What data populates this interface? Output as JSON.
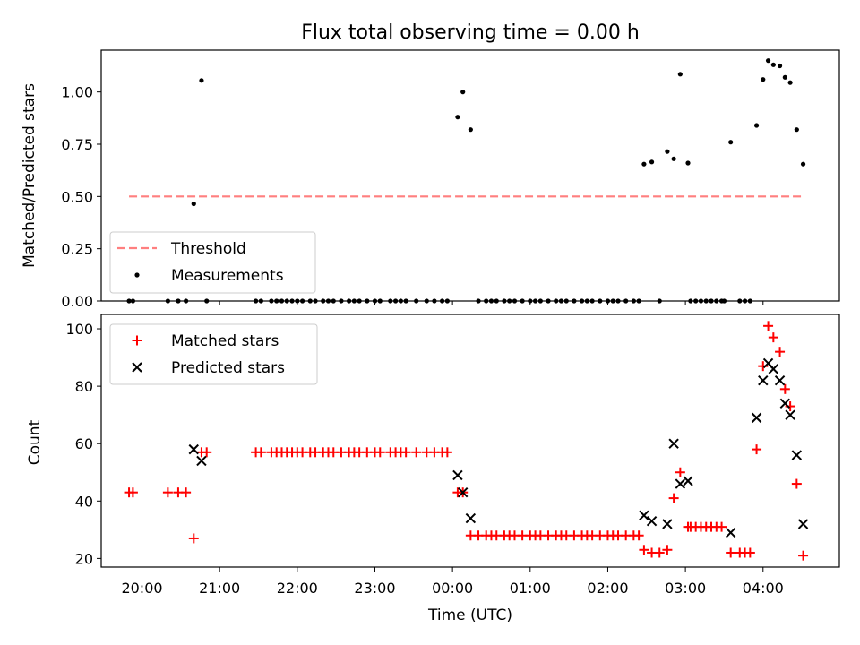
{
  "chart_data": [
    {
      "type": "scatter",
      "title": "Flux total observing time = 0.00 h",
      "ylabel": "Matched/Predicted stars",
      "xlabel": "",
      "ylim": [
        0,
        1.2
      ],
      "yticks": [
        "0.00",
        "0.25",
        "0.50",
        "0.75",
        "1.00"
      ],
      "legend": {
        "placement": "lower-left",
        "entries": [
          "Threshold",
          "Measurements"
        ]
      },
      "series": [
        {
          "name": "Threshold",
          "style": "dashed-line",
          "color": "#ff7f7f",
          "x": [
            "19:50",
            "04:30"
          ],
          "y": [
            0.5,
            0.5
          ]
        },
        {
          "name": "Measurements",
          "style": "dot",
          "color": "#000000",
          "points": [
            [
              "19:50",
              0
            ],
            [
              "19:53",
              0
            ],
            [
              "20:20",
              0
            ],
            [
              "20:28",
              0
            ],
            [
              "20:34",
              0
            ],
            [
              "20:40",
              0.465
            ],
            [
              "20:46",
              1.055
            ],
            [
              "20:50",
              0
            ],
            [
              "21:28",
              0
            ],
            [
              "21:32",
              0
            ],
            [
              "21:40",
              0
            ],
            [
              "21:44",
              0
            ],
            [
              "21:48",
              0
            ],
            [
              "21:52",
              0
            ],
            [
              "21:56",
              0
            ],
            [
              "22:00",
              0
            ],
            [
              "22:04",
              0
            ],
            [
              "22:10",
              0
            ],
            [
              "22:14",
              0
            ],
            [
              "22:20",
              0
            ],
            [
              "22:24",
              0
            ],
            [
              "22:28",
              0
            ],
            [
              "22:34",
              0
            ],
            [
              "22:40",
              0
            ],
            [
              "22:44",
              0
            ],
            [
              "22:48",
              0
            ],
            [
              "22:54",
              0
            ],
            [
              "23:00",
              0
            ],
            [
              "23:04",
              0
            ],
            [
              "23:12",
              0
            ],
            [
              "23:16",
              0
            ],
            [
              "23:20",
              0
            ],
            [
              "23:24",
              0
            ],
            [
              "23:32",
              0
            ],
            [
              "23:40",
              0
            ],
            [
              "23:46",
              0
            ],
            [
              "23:52",
              0
            ],
            [
              "23:56",
              0
            ],
            [
              "00:04",
              0.88
            ],
            [
              "00:08",
              1.0
            ],
            [
              "00:14",
              0.82
            ],
            [
              "00:20",
              0
            ],
            [
              "00:26",
              0
            ],
            [
              "00:30",
              0
            ],
            [
              "00:34",
              0
            ],
            [
              "00:40",
              0
            ],
            [
              "00:44",
              0
            ],
            [
              "00:48",
              0
            ],
            [
              "00:54",
              0
            ],
            [
              "01:00",
              0
            ],
            [
              "01:04",
              0
            ],
            [
              "01:08",
              0
            ],
            [
              "01:14",
              0
            ],
            [
              "01:20",
              0
            ],
            [
              "01:24",
              0
            ],
            [
              "01:28",
              0
            ],
            [
              "01:34",
              0
            ],
            [
              "01:40",
              0
            ],
            [
              "01:44",
              0
            ],
            [
              "01:48",
              0
            ],
            [
              "01:54",
              0
            ],
            [
              "02:00",
              0
            ],
            [
              "02:04",
              0
            ],
            [
              "02:08",
              0
            ],
            [
              "02:14",
              0
            ],
            [
              "02:20",
              0
            ],
            [
              "02:24",
              0
            ],
            [
              "02:28",
              0.655
            ],
            [
              "02:34",
              0.665
            ],
            [
              "02:40",
              0
            ],
            [
              "02:46",
              0.715
            ],
            [
              "02:51",
              0.68
            ],
            [
              "02:56",
              1.085
            ],
            [
              "03:02",
              0.66
            ],
            [
              "03:04",
              0
            ],
            [
              "03:08",
              0
            ],
            [
              "03:12",
              0
            ],
            [
              "03:16",
              0
            ],
            [
              "03:20",
              0
            ],
            [
              "03:24",
              0
            ],
            [
              "03:28",
              0
            ],
            [
              "03:30",
              0
            ],
            [
              "03:35",
              0.76
            ],
            [
              "03:42",
              0
            ],
            [
              "03:46",
              0
            ],
            [
              "03:50",
              0
            ],
            [
              "03:55",
              0.84
            ],
            [
              "04:00",
              1.06
            ],
            [
              "04:04",
              1.15
            ],
            [
              "04:08",
              1.13
            ],
            [
              "04:13",
              1.125
            ],
            [
              "04:17",
              1.07
            ],
            [
              "04:21",
              1.045
            ],
            [
              "04:26",
              0.82
            ],
            [
              "04:31",
              0.655
            ]
          ]
        }
      ]
    },
    {
      "type": "scatter",
      "title": "",
      "xlabel": "Time (UTC)",
      "ylabel": "Count",
      "ylim": [
        17,
        105
      ],
      "yticks": [
        "20",
        "40",
        "60",
        "80",
        "100"
      ],
      "xticks": [
        "20:00",
        "21:00",
        "22:00",
        "23:00",
        "00:00",
        "01:00",
        "02:00",
        "03:00",
        "04:00"
      ],
      "legend": {
        "placement": "upper-left",
        "entries": [
          "Matched stars",
          "Predicted stars"
        ]
      },
      "series": [
        {
          "name": "Matched stars",
          "marker": "plus",
          "color": "#ff0000",
          "points": [
            [
              "19:50",
              43
            ],
            [
              "19:53",
              43
            ],
            [
              "20:20",
              43
            ],
            [
              "20:28",
              43
            ],
            [
              "20:34",
              43
            ],
            [
              "20:40",
              27
            ],
            [
              "20:46",
              57
            ],
            [
              "20:50",
              57
            ],
            [
              "21:28",
              57
            ],
            [
              "21:32",
              57
            ],
            [
              "21:40",
              57
            ],
            [
              "21:44",
              57
            ],
            [
              "21:48",
              57
            ],
            [
              "21:52",
              57
            ],
            [
              "21:56",
              57
            ],
            [
              "22:00",
              57
            ],
            [
              "22:04",
              57
            ],
            [
              "22:10",
              57
            ],
            [
              "22:14",
              57
            ],
            [
              "22:20",
              57
            ],
            [
              "22:24",
              57
            ],
            [
              "22:28",
              57
            ],
            [
              "22:34",
              57
            ],
            [
              "22:40",
              57
            ],
            [
              "22:44",
              57
            ],
            [
              "22:48",
              57
            ],
            [
              "22:54",
              57
            ],
            [
              "23:00",
              57
            ],
            [
              "23:04",
              57
            ],
            [
              "23:12",
              57
            ],
            [
              "23:16",
              57
            ],
            [
              "23:20",
              57
            ],
            [
              "23:24",
              57
            ],
            [
              "23:32",
              57
            ],
            [
              "23:40",
              57
            ],
            [
              "23:46",
              57
            ],
            [
              "23:52",
              57
            ],
            [
              "23:56",
              57
            ],
            [
              "00:04",
              43
            ],
            [
              "00:08",
              43
            ],
            [
              "00:14",
              28
            ],
            [
              "00:20",
              28
            ],
            [
              "00:26",
              28
            ],
            [
              "00:30",
              28
            ],
            [
              "00:34",
              28
            ],
            [
              "00:40",
              28
            ],
            [
              "00:44",
              28
            ],
            [
              "00:48",
              28
            ],
            [
              "00:54",
              28
            ],
            [
              "01:00",
              28
            ],
            [
              "01:04",
              28
            ],
            [
              "01:08",
              28
            ],
            [
              "01:14",
              28
            ],
            [
              "01:20",
              28
            ],
            [
              "01:24",
              28
            ],
            [
              "01:28",
              28
            ],
            [
              "01:34",
              28
            ],
            [
              "01:40",
              28
            ],
            [
              "01:44",
              28
            ],
            [
              "01:48",
              28
            ],
            [
              "01:54",
              28
            ],
            [
              "02:00",
              28
            ],
            [
              "02:04",
              28
            ],
            [
              "02:08",
              28
            ],
            [
              "02:14",
              28
            ],
            [
              "02:20",
              28
            ],
            [
              "02:24",
              28
            ],
            [
              "02:28",
              23
            ],
            [
              "02:34",
              22
            ],
            [
              "02:40",
              22
            ],
            [
              "02:46",
              23
            ],
            [
              "02:51",
              41
            ],
            [
              "02:56",
              50
            ],
            [
              "03:02",
              31
            ],
            [
              "03:04",
              31
            ],
            [
              "03:08",
              31
            ],
            [
              "03:12",
              31
            ],
            [
              "03:16",
              31
            ],
            [
              "03:20",
              31
            ],
            [
              "03:24",
              31
            ],
            [
              "03:28",
              31
            ],
            [
              "03:35",
              22
            ],
            [
              "03:42",
              22
            ],
            [
              "03:46",
              22
            ],
            [
              "03:50",
              22
            ],
            [
              "03:55",
              58
            ],
            [
              "04:00",
              87
            ],
            [
              "04:04",
              101
            ],
            [
              "04:08",
              97
            ],
            [
              "04:13",
              92
            ],
            [
              "04:17",
              79
            ],
            [
              "04:21",
              73
            ],
            [
              "04:26",
              46
            ],
            [
              "04:31",
              21
            ]
          ]
        },
        {
          "name": "Predicted stars",
          "marker": "x",
          "color": "#000000",
          "points": [
            [
              "20:40",
              58
            ],
            [
              "20:46",
              54
            ],
            [
              "00:04",
              49
            ],
            [
              "00:08",
              43
            ],
            [
              "00:14",
              34
            ],
            [
              "02:28",
              35
            ],
            [
              "02:34",
              33
            ],
            [
              "02:46",
              32
            ],
            [
              "02:51",
              60
            ],
            [
              "02:56",
              46
            ],
            [
              "03:02",
              47
            ],
            [
              "03:35",
              29
            ],
            [
              "03:55",
              69
            ],
            [
              "04:00",
              82
            ],
            [
              "04:04",
              88
            ],
            [
              "04:08",
              86
            ],
            [
              "04:13",
              82
            ],
            [
              "04:17",
              74
            ],
            [
              "04:21",
              70
            ],
            [
              "04:26",
              56
            ],
            [
              "04:31",
              32
            ]
          ]
        }
      ]
    }
  ]
}
